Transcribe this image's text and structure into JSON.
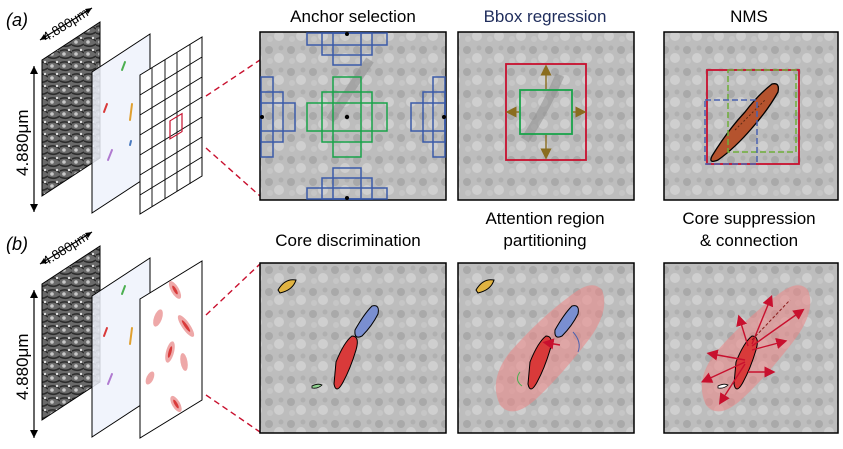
{
  "labels": {
    "row_a": "(a)",
    "row_b": "(b)"
  },
  "dimensions": {
    "width_label": "4.880μm",
    "height_label": "4.880μm"
  },
  "row_a": {
    "anchor_title": "Anchor selection",
    "bbox_title": "Bbox regression",
    "nms_title": "NMS"
  },
  "row_b": {
    "core_title": "Core discrimination",
    "attention_line1": "Attention region",
    "attention_line2": "partitioning",
    "suppression_line1": "Core suppression",
    "suppression_line2": "& connection"
  },
  "colors": {
    "title_dark": "#000000",
    "title_navy": "#1f2d5c",
    "anchor_blue": "#3b5ba9",
    "anchor_green": "#19a34a",
    "box_red": "#c8102e",
    "arrow_olive": "#8a6d1f",
    "mito_brown": "#b5532e",
    "core_red": "#d93a3a",
    "core_blue": "#7a8fd1",
    "core_yellow": "#e0b341",
    "halo_pink": "#e98b8b",
    "dash_green": "#6fae3a",
    "dash_blue": "#4a62b0"
  }
}
